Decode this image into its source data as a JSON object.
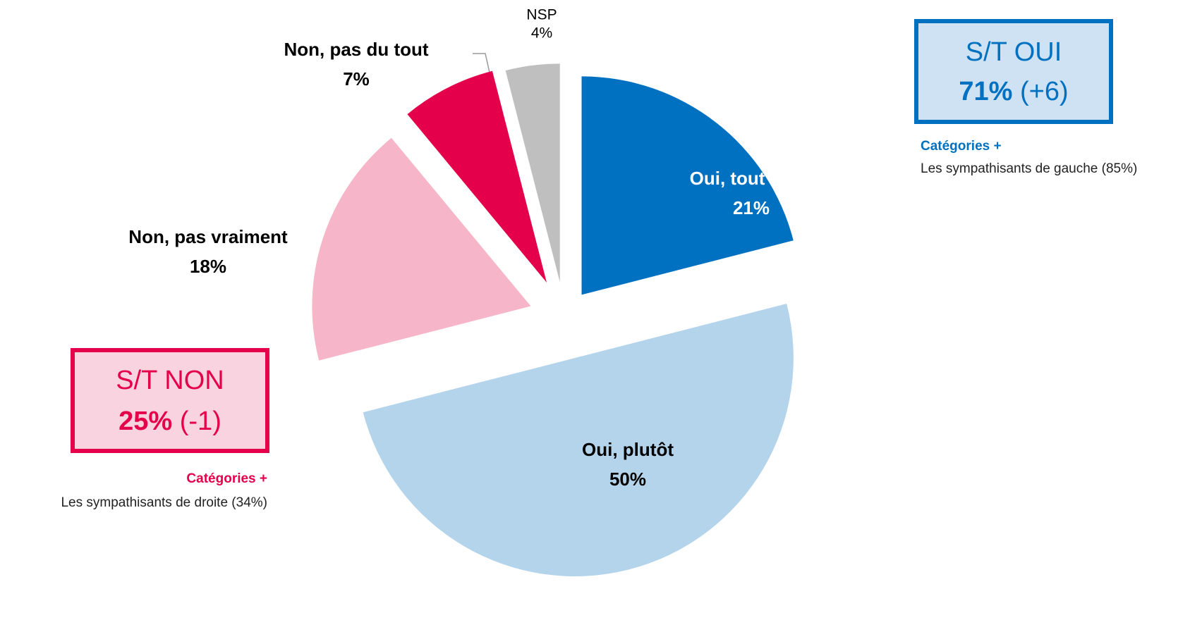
{
  "chart_data": {
    "type": "pie",
    "categories": [
      "Oui, tout à fait",
      "Oui, plutôt",
      "Non, pas vraiment",
      "Non, pas du tout",
      "NSP"
    ],
    "values": [
      21,
      50,
      18,
      7,
      4
    ],
    "value_labels": [
      "21%",
      "50%",
      "18%",
      "7%",
      "4%"
    ],
    "colors": [
      "#0070c0",
      "#b4d4ec",
      "#f6b5c8",
      "#e4004b",
      "#bfbfbf"
    ],
    "annotations": [
      {
        "title": "S/T OUI",
        "value": "71%",
        "change": "(+6)",
        "heading": "Catégories +",
        "text": "Les sympathisants de gauche (85%)"
      },
      {
        "title": "S/T NON",
        "value": "25%",
        "change": "(-1)",
        "heading": "Catégories +",
        "text": "Les sympathisants de droite (34%)"
      }
    ]
  }
}
